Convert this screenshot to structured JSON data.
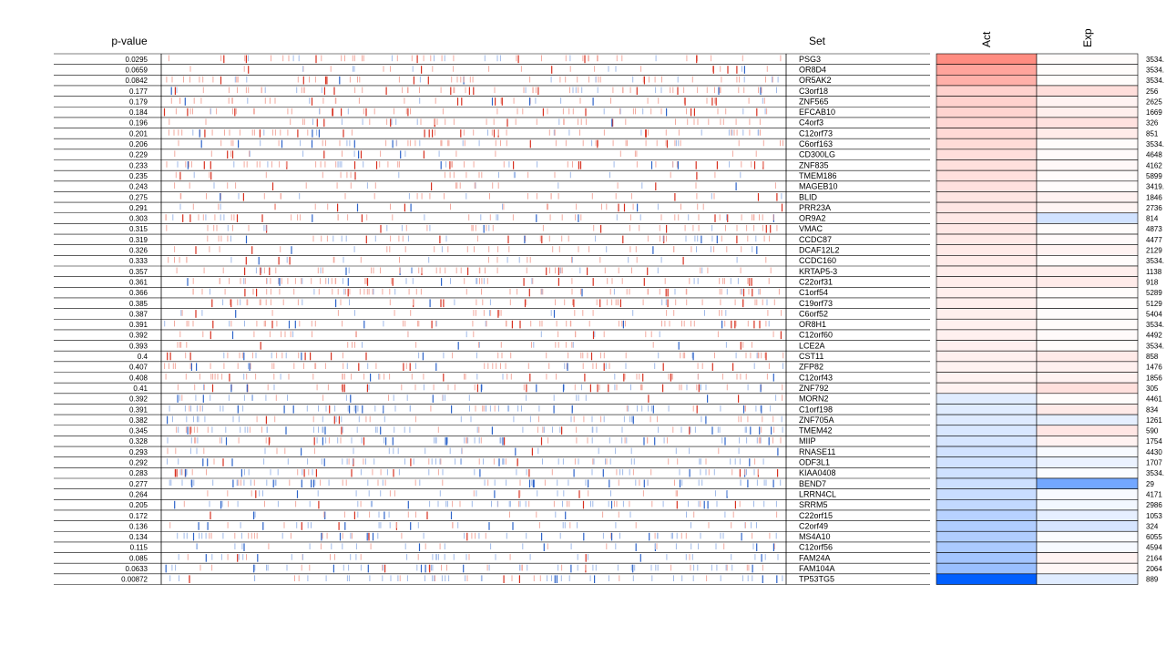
{
  "chart_data": {
    "type": "heatmap",
    "title": "",
    "headers": {
      "pvalue": "p-value",
      "set": "Set",
      "act": "Act",
      "exp": "Exp"
    },
    "colors": {
      "up": "#d7301f",
      "down": "#2c63c9",
      "line": "#000000"
    },
    "rows": [
      {
        "p": "0.0295",
        "set": "PSG3",
        "size": "3534.",
        "act": 0.7,
        "exp": 0.02
      },
      {
        "p": "0.0659",
        "set": "OR8D4",
        "size": "3534.",
        "act": 0.55,
        "exp": 0.02
      },
      {
        "p": "0.0842",
        "set": "OR5AK2",
        "size": "3534.",
        "act": 0.48,
        "exp": 0.02
      },
      {
        "p": "0.177",
        "set": "C3orf18",
        "size": "256",
        "act": 0.27,
        "exp": 0.2
      },
      {
        "p": "0.179",
        "set": "ZNF565",
        "size": "2625",
        "act": 0.27,
        "exp": 0.07
      },
      {
        "p": "0.184",
        "set": "EFCAB10",
        "size": "1669",
        "act": 0.26,
        "exp": 0.1
      },
      {
        "p": "0.196",
        "set": "C4orf3",
        "size": "326",
        "act": 0.24,
        "exp": 0.18
      },
      {
        "p": "0.201",
        "set": "C12orf73",
        "size": "851",
        "act": 0.23,
        "exp": 0.12
      },
      {
        "p": "0.206",
        "set": "C6orf163",
        "size": "3534.",
        "act": 0.22,
        "exp": 0.02
      },
      {
        "p": "0.229",
        "set": "CD300LG",
        "size": "4648",
        "act": 0.2,
        "exp": 0.03
      },
      {
        "p": "0.233",
        "set": "ZNF835",
        "size": "4162",
        "act": 0.19,
        "exp": 0.04
      },
      {
        "p": "0.235",
        "set": "TMEM186",
        "size": "5899",
        "act": 0.19,
        "exp": 0.02
      },
      {
        "p": "0.243",
        "set": "MAGEB10",
        "size": "3419.",
        "act": 0.18,
        "exp": 0.02
      },
      {
        "p": "0.275",
        "set": "BLID",
        "size": "1846",
        "act": 0.16,
        "exp": 0.08
      },
      {
        "p": "0.291",
        "set": "PRR23A",
        "size": "2736",
        "act": 0.15,
        "exp": 0.06
      },
      {
        "p": "0.303",
        "set": "OR9A2",
        "size": "814",
        "act": 0.14,
        "exp": -0.18
      },
      {
        "p": "0.315",
        "set": "VMAC",
        "size": "4873",
        "act": 0.14,
        "exp": 0.02
      },
      {
        "p": "0.319",
        "set": "CCDC87",
        "size": "4477",
        "act": 0.13,
        "exp": 0.03
      },
      {
        "p": "0.326",
        "set": "DCAF12L2",
        "size": "2129",
        "act": 0.13,
        "exp": 0.07
      },
      {
        "p": "0.333",
        "set": "CCDC160",
        "size": "3534.",
        "act": 0.12,
        "exp": 0.02
      },
      {
        "p": "0.357",
        "set": "KRTAP5-3",
        "size": "1138",
        "act": 0.11,
        "exp": 0.1
      },
      {
        "p": "0.361",
        "set": "C22orf31",
        "size": "918",
        "act": 0.11,
        "exp": 0.12
      },
      {
        "p": "0.366",
        "set": "C1orf54",
        "size": "5289",
        "act": 0.1,
        "exp": 0.02
      },
      {
        "p": "0.385",
        "set": "C19orf73",
        "size": "5129",
        "act": 0.1,
        "exp": 0.02
      },
      {
        "p": "0.387",
        "set": "C6orf52",
        "size": "5404",
        "act": 0.1,
        "exp": 0.02
      },
      {
        "p": "0.391",
        "set": "OR8H1",
        "size": "3534.",
        "act": 0.09,
        "exp": 0.02
      },
      {
        "p": "0.392",
        "set": "C12orf60",
        "size": "4492",
        "act": 0.09,
        "exp": 0.03
      },
      {
        "p": "0.393",
        "set": "LCE2A",
        "size": "3534.",
        "act": 0.09,
        "exp": 0.02
      },
      {
        "p": "0.4",
        "set": "CST11",
        "size": "858",
        "act": 0.09,
        "exp": 0.13
      },
      {
        "p": "0.407",
        "set": "ZFP82",
        "size": "1476",
        "act": 0.08,
        "exp": 0.09
      },
      {
        "p": "0.408",
        "set": "C12orf43",
        "size": "1856",
        "act": 0.08,
        "exp": 0.08
      },
      {
        "p": "0.41",
        "set": "ZNF792",
        "size": "305",
        "act": 0.08,
        "exp": 0.19
      },
      {
        "p": "0.392",
        "set": "MORN2",
        "size": "4461",
        "act": -0.12,
        "exp": 0.02
      },
      {
        "p": "0.391",
        "set": "C1orf198",
        "size": "834",
        "act": -0.12,
        "exp": 0.13
      },
      {
        "p": "0.382",
        "set": "ZNF705A",
        "size": "1261",
        "act": -0.13,
        "exp": -0.1
      },
      {
        "p": "0.345",
        "set": "TMEM42",
        "size": "590",
        "act": -0.15,
        "exp": 0.15
      },
      {
        "p": "0.328",
        "set": "MIIP",
        "size": "1754",
        "act": -0.16,
        "exp": 0.08
      },
      {
        "p": "0.293",
        "set": "RNASE11",
        "size": "4430",
        "act": -0.18,
        "exp": -0.03
      },
      {
        "p": "0.292",
        "set": "ODF3L1",
        "size": "1707",
        "act": -0.18,
        "exp": -0.08
      },
      {
        "p": "0.283",
        "set": "KIAA0408",
        "size": "3534.",
        "act": -0.19,
        "exp": -0.02
      },
      {
        "p": "0.277",
        "set": "BEND7",
        "size": "29",
        "act": -0.2,
        "exp": -0.55
      },
      {
        "p": "0.264",
        "set": "LRRN4CL",
        "size": "4171",
        "act": -0.21,
        "exp": -0.03
      },
      {
        "p": "0.205",
        "set": "SRRM5",
        "size": "2986",
        "act": -0.24,
        "exp": -0.05
      },
      {
        "p": "0.172",
        "set": "C22orf15",
        "size": "1053",
        "act": -0.28,
        "exp": -0.1
      },
      {
        "p": "0.136",
        "set": "C2orf49",
        "size": "324",
        "act": -0.31,
        "exp": -0.16
      },
      {
        "p": "0.134",
        "set": "MS4A10",
        "size": "6055",
        "act": -0.31,
        "exp": -0.02
      },
      {
        "p": "0.115",
        "set": "C12orf56",
        "size": "4594",
        "act": -0.33,
        "exp": -0.03
      },
      {
        "p": "0.085",
        "set": "FAM24A",
        "size": "2164",
        "act": -0.36,
        "exp": 0.07
      },
      {
        "p": "0.0633",
        "set": "FAM104A",
        "size": "2064",
        "act": -0.4,
        "exp": 0.05
      },
      {
        "p": "0.00872",
        "set": "TP53TG5",
        "size": "889",
        "act": -1.0,
        "exp": -0.12
      }
    ]
  }
}
